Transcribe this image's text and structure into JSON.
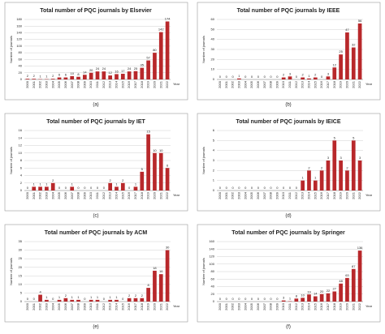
{
  "chart_data": [
    {
      "type": "bar",
      "title": "Total number of PQC journals by Elsevier",
      "caption": "(a)",
      "ylabel": "Number of journals",
      "xlabel": "Year",
      "color": "#b8282b",
      "categories": [
        "2000",
        "2001",
        "2002",
        "2003",
        "2004",
        "2005",
        "2006",
        "2007",
        "2008",
        "2009",
        "2010",
        "2011",
        "2012",
        "2013",
        "2014",
        "2015",
        "2016",
        "2017",
        "2018",
        "2019",
        "2020",
        "2021",
        "2022"
      ],
      "values": [
        2,
        2,
        1,
        1,
        2,
        6,
        6,
        10,
        8,
        14,
        20,
        24,
        24,
        12,
        16,
        17,
        24,
        25,
        35,
        57,
        80,
        142,
        174
      ],
      "ylim": [
        0,
        180
      ],
      "yticks": [
        0,
        20,
        40,
        60,
        80,
        100,
        120,
        140,
        160,
        180
      ],
      "grid": true
    },
    {
      "type": "bar",
      "title": "Total number of PQC journals by IEEE",
      "caption": "(b)",
      "ylabel": "Number of journals",
      "xlabel": "Year",
      "color": "#b8282b",
      "categories": [
        "2000",
        "2001",
        "2002",
        "2003",
        "2004",
        "2005",
        "2006",
        "2007",
        "2008",
        "2009",
        "2010",
        "2011",
        "2012",
        "2013",
        "2014",
        "2015",
        "2016",
        "2017",
        "2018",
        "2019",
        "2020",
        "2021",
        "2022"
      ],
      "values": [
        0,
        0,
        0,
        1,
        0,
        0,
        0,
        0,
        0,
        0,
        2,
        3,
        0,
        2,
        1,
        2,
        0,
        3,
        12,
        25,
        47,
        32,
        56
      ],
      "ylim": [
        0,
        60
      ],
      "yticks": [
        0,
        10,
        20,
        30,
        40,
        50,
        60
      ],
      "grid": true
    },
    {
      "type": "bar",
      "title": "Total number of PQC journals by IET",
      "caption": "(c)",
      "ylabel": "Number of journals",
      "xlabel": "Year",
      "color": "#b8282b",
      "categories": [
        "2000",
        "2001",
        "2002",
        "2003",
        "2004",
        "2005",
        "2006",
        "2007",
        "2008",
        "2009",
        "2010",
        "2011",
        "2012",
        "2013",
        "2014",
        "2015",
        "2016",
        "2017",
        "2018",
        "2019",
        "2020",
        "2021",
        "2022"
      ],
      "values": [
        0,
        1,
        1,
        1,
        2,
        0,
        0,
        1,
        0,
        0,
        0,
        0,
        0,
        2,
        1,
        2,
        0,
        1,
        5,
        15,
        10,
        10,
        6
      ],
      "ylim": [
        0,
        16
      ],
      "yticks": [
        0,
        2,
        4,
        6,
        8,
        10,
        12,
        14,
        16
      ],
      "grid": true
    },
    {
      "type": "bar",
      "title": "Total number of PQC journals by IEICE",
      "caption": "(d)",
      "ylabel": "Number of journals",
      "xlabel": "Year",
      "color": "#b8282b",
      "categories": [
        "2000",
        "2001",
        "2002",
        "2003",
        "2004",
        "2005",
        "2006",
        "2007",
        "2008",
        "2009",
        "2010",
        "2011",
        "2012",
        "2013",
        "2014",
        "2015",
        "2016",
        "2017",
        "2018",
        "2019",
        "2020",
        "2021",
        "2022"
      ],
      "values": [
        0,
        0,
        0,
        0,
        0,
        0,
        0,
        0,
        0,
        0,
        0,
        0,
        0,
        1,
        2,
        1,
        2,
        3,
        5,
        3,
        2,
        5,
        3
      ],
      "ylim": [
        0,
        6
      ],
      "yticks": [
        0,
        1,
        2,
        3,
        4,
        5,
        6
      ],
      "grid": true
    },
    {
      "type": "bar",
      "title": "Total number of PQC journals by ACM",
      "caption": "(e)",
      "ylabel": "Number of journals",
      "xlabel": "Year",
      "color": "#b8282b",
      "categories": [
        "2000",
        "2001",
        "2002",
        "2003",
        "2004",
        "2005",
        "2006",
        "2007",
        "2008",
        "2009",
        "2010",
        "2011",
        "2012",
        "2013",
        "2014",
        "2015",
        "2016",
        "2017",
        "2018",
        "2019",
        "2020",
        "2021",
        "2022"
      ],
      "values": [
        0,
        0,
        4,
        1,
        0,
        1,
        2,
        1,
        1,
        0,
        1,
        1,
        0,
        1,
        1,
        0,
        2,
        2,
        2,
        8,
        18,
        16,
        30
      ],
      "ylim": [
        0,
        35
      ],
      "yticks": [
        0,
        5,
        10,
        15,
        20,
        25,
        30,
        35
      ],
      "grid": true
    },
    {
      "type": "bar",
      "title": "Total number of PQC journals by Springer",
      "caption": "(f)",
      "ylabel": "Number of journals",
      "xlabel": "Year",
      "color": "#b8282b",
      "categories": [
        "2000",
        "2001",
        "2002",
        "2003",
        "2004",
        "2005",
        "2006",
        "2007",
        "2008",
        "2009",
        "2010",
        "2011",
        "2012",
        "2013",
        "2014",
        "2015",
        "2016",
        "2017",
        "2018",
        "2019",
        "2020",
        "2021",
        "2022"
      ],
      "values": [
        0,
        0,
        0,
        0,
        0,
        0,
        0,
        0,
        0,
        0,
        3,
        1,
        8,
        10,
        19,
        14,
        20,
        22,
        27,
        48,
        63,
        87,
        136
      ],
      "ylim": [
        0,
        160
      ],
      "yticks": [
        0,
        20,
        40,
        60,
        80,
        100,
        120,
        140,
        160
      ],
      "grid": true
    }
  ]
}
